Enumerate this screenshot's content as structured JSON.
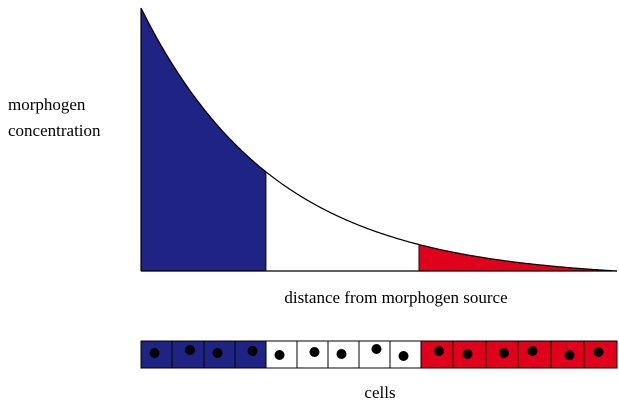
{
  "labels": {
    "y_axis": [
      "morphogen",
      "concentration"
    ],
    "x_axis": "distance from morphogen source",
    "cells": "cells"
  }
}
